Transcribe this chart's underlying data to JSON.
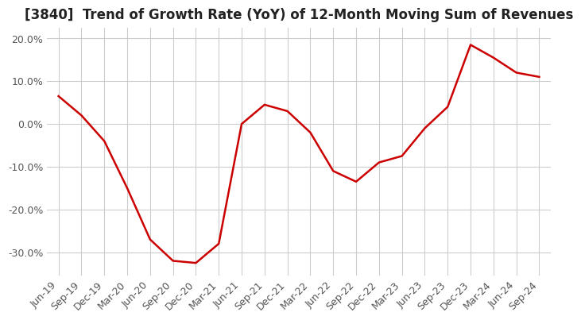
{
  "title": "[3840]  Trend of Growth Rate (YoY) of 12-Month Moving Sum of Revenues",
  "line_color": "#cc0000",
  "background_color": "#ffffff",
  "grid_color": "#cccccc",
  "ylim": [
    -0.355,
    0.225
  ],
  "yticks": [
    0.2,
    0.1,
    0.0,
    -0.1,
    -0.2,
    -0.3
  ],
  "dates": [
    "Jun-19",
    "Sep-19",
    "Dec-19",
    "Mar-20",
    "Jun-20",
    "Sep-20",
    "Dec-20",
    "Mar-21",
    "Jun-21",
    "Sep-21",
    "Dec-21",
    "Mar-22",
    "Jun-22",
    "Sep-22",
    "Dec-22",
    "Mar-23",
    "Jun-23",
    "Sep-23",
    "Dec-23",
    "Mar-24",
    "Jun-24",
    "Sep-24"
  ],
  "values": [
    0.065,
    0.02,
    -0.04,
    -0.15,
    -0.27,
    -0.32,
    -0.325,
    -0.28,
    0.0,
    0.045,
    0.03,
    -0.02,
    -0.11,
    -0.135,
    -0.09,
    -0.075,
    -0.01,
    0.04,
    0.185,
    0.155,
    0.12,
    0.11
  ],
  "title_fontsize": 12,
  "tick_fontsize": 9,
  "title_color": "#222222",
  "label_rotation": 45,
  "linewidth": 1.8
}
